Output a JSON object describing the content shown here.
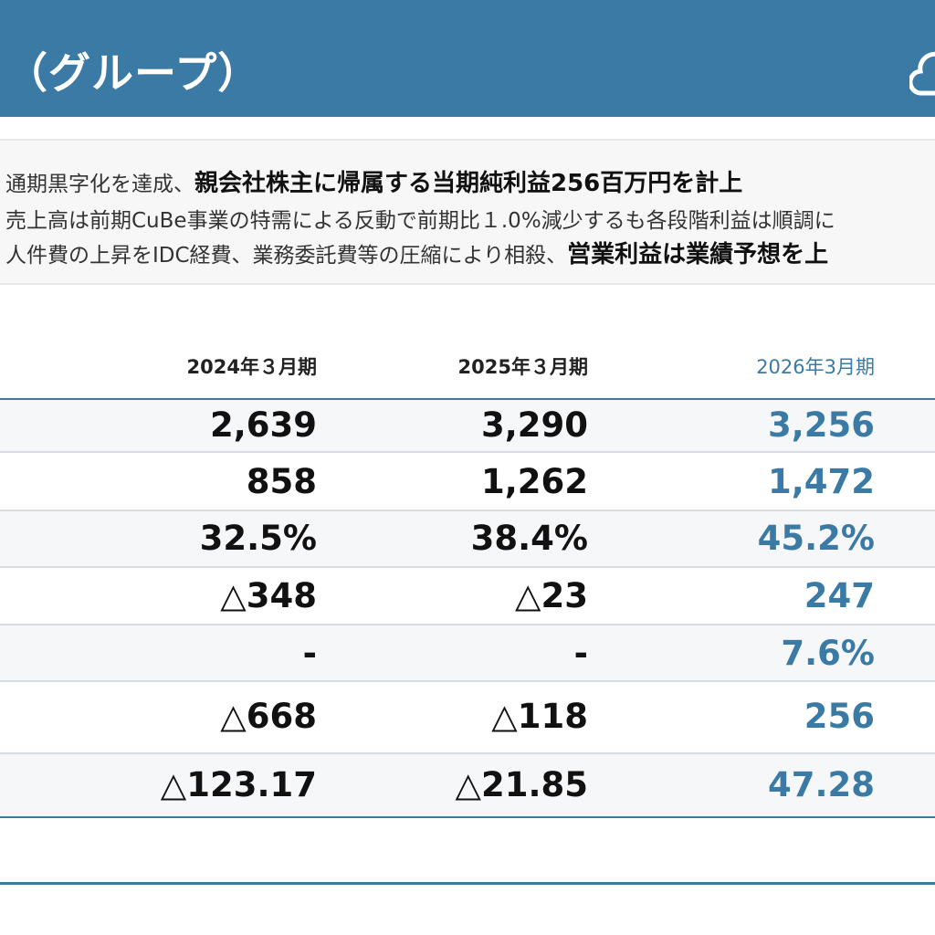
{
  "header": {
    "title": "（グループ）"
  },
  "summary": {
    "line1": {
      "text": "通期黒字化を達成、",
      "emphasis": "親会社株主に帰属する当期純利益256百万円を計上"
    },
    "line2": {
      "text": "売上高は前期CuBe事業の特需による反動で前期比１.0%減少するも各段階利益は順調に"
    },
    "line3": {
      "text": "人件費の上昇をIDC経費、業務委託費等の圧縮により相殺、",
      "emphasis": "営業利益は業績予想を上"
    }
  },
  "table": {
    "columns": [
      "2024年３月期",
      "2025年３月期",
      "2026年3月期"
    ],
    "rows": [
      [
        "2,639",
        "3,290",
        "3,256"
      ],
      [
        "858",
        "1,262",
        "1,472"
      ],
      [
        "32.5%",
        "38.4%",
        "45.2%"
      ],
      [
        "△348",
        "△23",
        "247"
      ],
      [
        "-",
        "-",
        "7.6%"
      ],
      [
        "△668",
        "△118",
        "256"
      ],
      [
        "△123.17",
        "△21.85",
        "47.28"
      ]
    ]
  },
  "colors": {
    "accent": "#3a7aa5",
    "header_bg": "#3a7aa5",
    "text": "#111111"
  }
}
